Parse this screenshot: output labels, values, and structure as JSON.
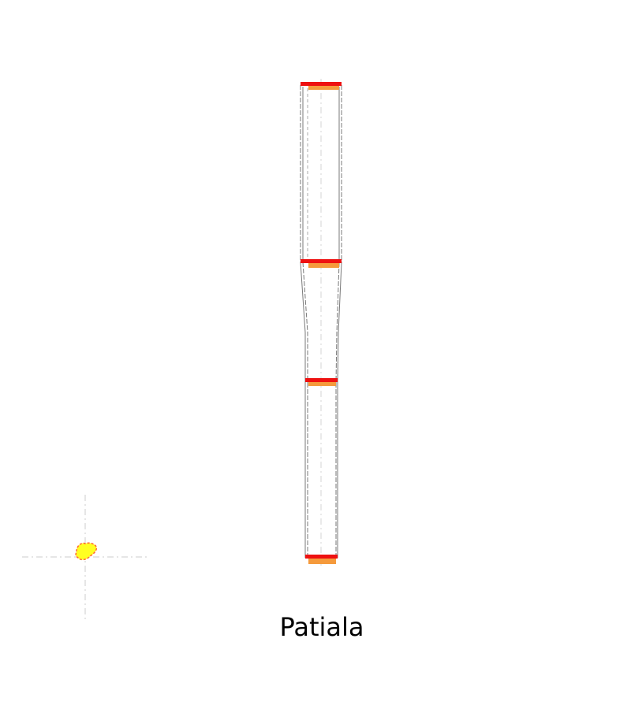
{
  "caption": "Patiala",
  "colors": {
    "outline": "#7a7a7a",
    "axis": "#cccccc",
    "level_bar_top": "#ee1111",
    "level_bar_bottom": "#f59a3c",
    "marker_fill": "#ffff22",
    "marker_edge": "#ff6633"
  },
  "icons": {
    "location_marker": "yellow-blob-marker-icon"
  }
}
